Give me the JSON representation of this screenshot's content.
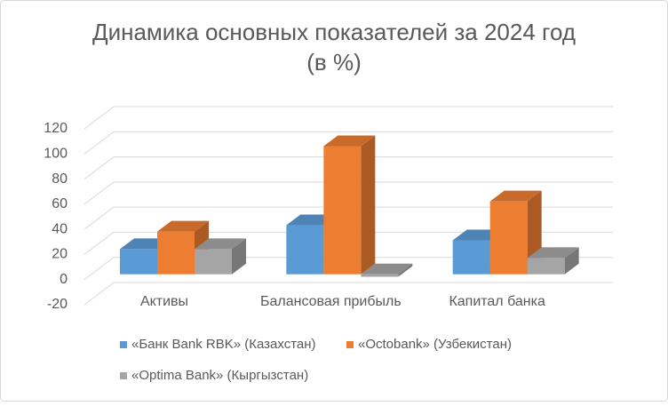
{
  "chart_data": {
    "type": "bar3d",
    "title": "Динамика основных показателей за 2024 год",
    "subtitle": "(в %)",
    "categories": [
      "Активы",
      "Балансовая прибыль",
      "Капитал банка"
    ],
    "series": [
      {
        "name": "«Банк Bank RBK» (Казахстан)",
        "color": "#5b9bd5",
        "values": [
          20,
          39,
          27
        ]
      },
      {
        "name": "«Octobank» (Узбекистан)",
        "color": "#ed7d31",
        "values": [
          34,
          102,
          58
        ]
      },
      {
        "name": "«Optima Bank» (Кыргызстан)",
        "color": "#a5a5a5",
        "values": [
          20,
          -2,
          13
        ]
      }
    ],
    "ylim": [
      -20,
      120
    ],
    "yticks": [
      -20,
      0,
      20,
      40,
      60,
      80,
      100,
      120
    ],
    "grid": true
  }
}
